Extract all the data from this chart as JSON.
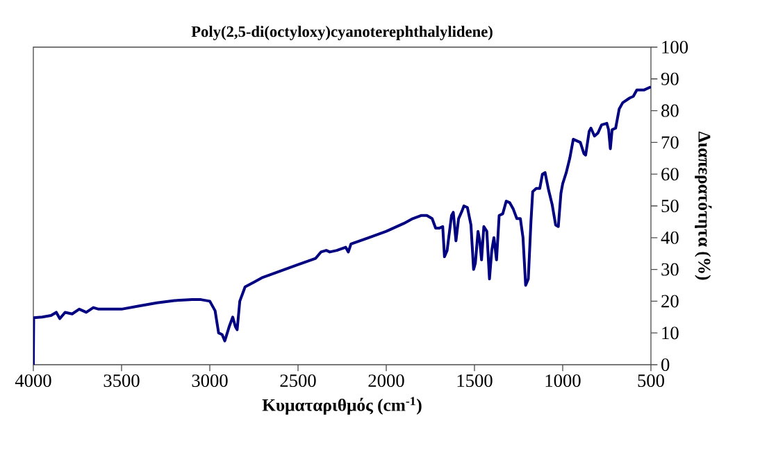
{
  "chart_data": {
    "type": "line",
    "title": "Poly(2,5-di(octyloxy)cyanoterephthalylidene)",
    "xlabel": "Κυματαριθμός (cm$^{-1}$)",
    "ylabel": "Διαπερατότητα (%)",
    "xlim": [
      4000,
      500
    ],
    "xticks": [
      4000,
      3500,
      3000,
      2500,
      2000,
      1500,
      1000,
      500
    ],
    "ylim": [
      0,
      100
    ],
    "yticks": [
      0,
      10,
      20,
      30,
      40,
      50,
      60,
      70,
      80,
      90,
      100
    ],
    "grid": false,
    "marker": "none",
    "line_style": "solid",
    "series": [
      {
        "color": "#000080",
        "x": [
          4000,
          3998,
          3950,
          3900,
          3870,
          3850,
          3820,
          3780,
          3740,
          3700,
          3660,
          3630,
          3600,
          3500,
          3400,
          3300,
          3200,
          3100,
          3050,
          3000,
          2970,
          2950,
          2930,
          2915,
          2890,
          2870,
          2855,
          2845,
          2830,
          2800,
          2750,
          2700,
          2600,
          2500,
          2400,
          2370,
          2340,
          2320,
          2280,
          2230,
          2215,
          2200,
          2100,
          2000,
          1900,
          1850,
          1800,
          1770,
          1740,
          1720,
          1700,
          1680,
          1670,
          1655,
          1630,
          1620,
          1605,
          1590,
          1570,
          1560,
          1540,
          1520,
          1505,
          1495,
          1480,
          1470,
          1460,
          1447,
          1430,
          1415,
          1402,
          1390,
          1375,
          1360,
          1340,
          1320,
          1300,
          1280,
          1260,
          1240,
          1225,
          1210,
          1195,
          1180,
          1170,
          1150,
          1130,
          1115,
          1100,
          1080,
          1060,
          1040,
          1025,
          1010,
          1000,
          980,
          960,
          940,
          920,
          900,
          880,
          870,
          850,
          840,
          820,
          800,
          780,
          750,
          740,
          730,
          720,
          700,
          680,
          660,
          620,
          600,
          580,
          560,
          540,
          500
        ],
        "values": [
          0,
          14.8,
          15,
          15.5,
          16.5,
          14.5,
          16.5,
          16,
          17.5,
          16.5,
          18,
          17.5,
          17.5,
          17.5,
          18.5,
          19.5,
          20.2,
          20.5,
          20.5,
          20,
          17,
          10,
          9.5,
          7.5,
          12,
          15,
          12,
          11,
          20,
          24.5,
          26,
          27.5,
          29.5,
          31.5,
          33.5,
          35.5,
          36,
          35.5,
          36,
          37,
          35.5,
          38,
          40,
          42,
          44.5,
          46,
          47,
          47,
          46,
          43,
          43,
          43.5,
          34,
          36,
          47,
          48,
          39,
          46,
          48.5,
          50,
          49.5,
          44,
          30,
          32,
          42,
          39,
          33,
          43.5,
          42,
          27,
          36,
          40,
          33,
          47,
          47.5,
          51.5,
          51,
          49,
          46,
          46,
          40,
          25,
          27,
          45,
          54.5,
          55.5,
          55.5,
          60,
          60.5,
          55,
          50.5,
          44,
          43.5,
          54,
          57,
          60.5,
          65,
          71,
          70.5,
          70,
          66.5,
          66,
          73.5,
          74.5,
          72,
          73,
          75.5,
          76,
          74,
          68,
          74,
          74.5,
          80.5,
          82.5,
          84,
          84.5,
          86.5,
          86.5,
          86.5,
          87.5
        ]
      }
    ]
  }
}
